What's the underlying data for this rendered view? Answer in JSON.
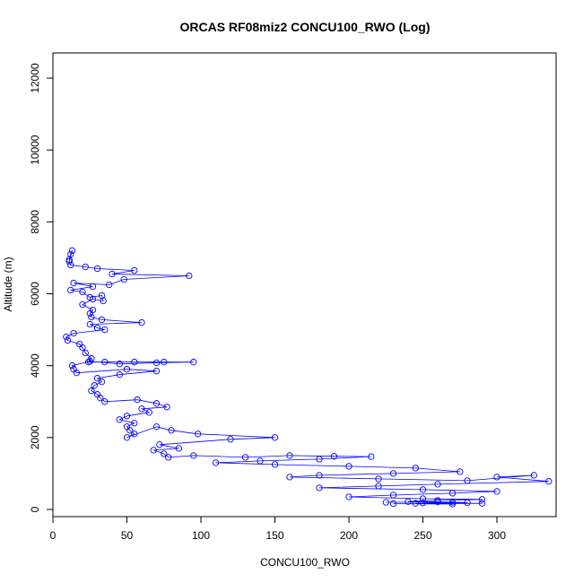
{
  "chart_data": {
    "type": "scatter",
    "title": "ORCAS RF08miz2 CONCU100_RWO (Log)",
    "xlabel": "CONCU100_RWO",
    "ylabel": "Altitude (m)",
    "xlim": [
      0,
      340
    ],
    "ylim": [
      -200,
      12700
    ],
    "xticks": [
      0,
      50,
      100,
      150,
      200,
      250,
      300
    ],
    "yticks": [
      0,
      2000,
      4000,
      6000,
      8000,
      10000,
      12000
    ],
    "grid": false,
    "style": "points connected by lines",
    "color": "#0000ff",
    "series": [
      {
        "points": [
          [
            11,
            6950
          ],
          [
            12,
            7100
          ],
          [
            13,
            7200
          ],
          [
            11,
            6900
          ],
          [
            12,
            6800
          ],
          [
            22,
            6750
          ],
          [
            30,
            6700
          ],
          [
            55,
            6650
          ],
          [
            40,
            6550
          ],
          [
            92,
            6500
          ],
          [
            48,
            6400
          ],
          [
            38,
            6250
          ],
          [
            14,
            6300
          ],
          [
            27,
            6200
          ],
          [
            12,
            6100
          ],
          [
            20,
            6050
          ],
          [
            25,
            5900
          ],
          [
            33,
            5950
          ],
          [
            34,
            5800
          ],
          [
            27,
            5850
          ],
          [
            20,
            5700
          ],
          [
            27,
            5550
          ],
          [
            25,
            5450
          ],
          [
            26,
            5350
          ],
          [
            33,
            5280
          ],
          [
            60,
            5200
          ],
          [
            25,
            5150
          ],
          [
            30,
            5050
          ],
          [
            35,
            5000
          ],
          [
            14,
            4900
          ],
          [
            9,
            4800
          ],
          [
            10,
            4700
          ],
          [
            18,
            4600
          ],
          [
            20,
            4500
          ],
          [
            22,
            4350
          ],
          [
            26,
            4200
          ],
          [
            24,
            4100
          ],
          [
            35,
            4100
          ],
          [
            55,
            4100
          ],
          [
            75,
            4100
          ],
          [
            95,
            4100
          ],
          [
            70,
            4080
          ],
          [
            45,
            4050
          ],
          [
            25,
            4120
          ],
          [
            13,
            4000
          ],
          [
            14,
            3900
          ],
          [
            16,
            3800
          ],
          [
            50,
            3900
          ],
          [
            70,
            3850
          ],
          [
            45,
            3750
          ],
          [
            30,
            3650
          ],
          [
            33,
            3550
          ],
          [
            28,
            3450
          ],
          [
            26,
            3300
          ],
          [
            30,
            3200
          ],
          [
            32,
            3100
          ],
          [
            35,
            3000
          ],
          [
            57,
            3050
          ],
          [
            70,
            2950
          ],
          [
            77,
            2850
          ],
          [
            60,
            2800
          ],
          [
            65,
            2700
          ],
          [
            50,
            2600
          ],
          [
            45,
            2500
          ],
          [
            55,
            2400
          ],
          [
            50,
            2300
          ],
          [
            52,
            2200
          ],
          [
            55,
            2100
          ],
          [
            50,
            2000
          ],
          [
            70,
            2300
          ],
          [
            80,
            2200
          ],
          [
            98,
            2100
          ],
          [
            150,
            2000
          ],
          [
            120,
            1950
          ],
          [
            72,
            1800
          ],
          [
            85,
            1700
          ],
          [
            68,
            1650
          ],
          [
            75,
            1550
          ],
          [
            78,
            1450
          ],
          [
            95,
            1500
          ],
          [
            130,
            1450
          ],
          [
            160,
            1500
          ],
          [
            190,
            1480
          ],
          [
            215,
            1470
          ],
          [
            180,
            1400
          ],
          [
            140,
            1350
          ],
          [
            110,
            1300
          ],
          [
            150,
            1250
          ],
          [
            200,
            1200
          ],
          [
            245,
            1150
          ],
          [
            275,
            1050
          ],
          [
            230,
            1000
          ],
          [
            180,
            950
          ],
          [
            160,
            900
          ],
          [
            220,
            850
          ],
          [
            280,
            800
          ],
          [
            325,
            950
          ],
          [
            300,
            900
          ],
          [
            335,
            780
          ],
          [
            260,
            700
          ],
          [
            220,
            650
          ],
          [
            180,
            600
          ],
          [
            250,
            550
          ],
          [
            300,
            500
          ],
          [
            270,
            450
          ],
          [
            230,
            400
          ],
          [
            200,
            350
          ],
          [
            250,
            300
          ],
          [
            290,
            280
          ],
          [
            260,
            250
          ],
          [
            240,
            220
          ],
          [
            270,
            200
          ],
          [
            250,
            180
          ],
          [
            290,
            170
          ],
          [
            230,
            160
          ],
          [
            270,
            150
          ],
          [
            245,
            170
          ],
          [
            280,
            190
          ],
          [
            260,
            210
          ],
          [
            225,
            200
          ]
        ]
      }
    ]
  }
}
